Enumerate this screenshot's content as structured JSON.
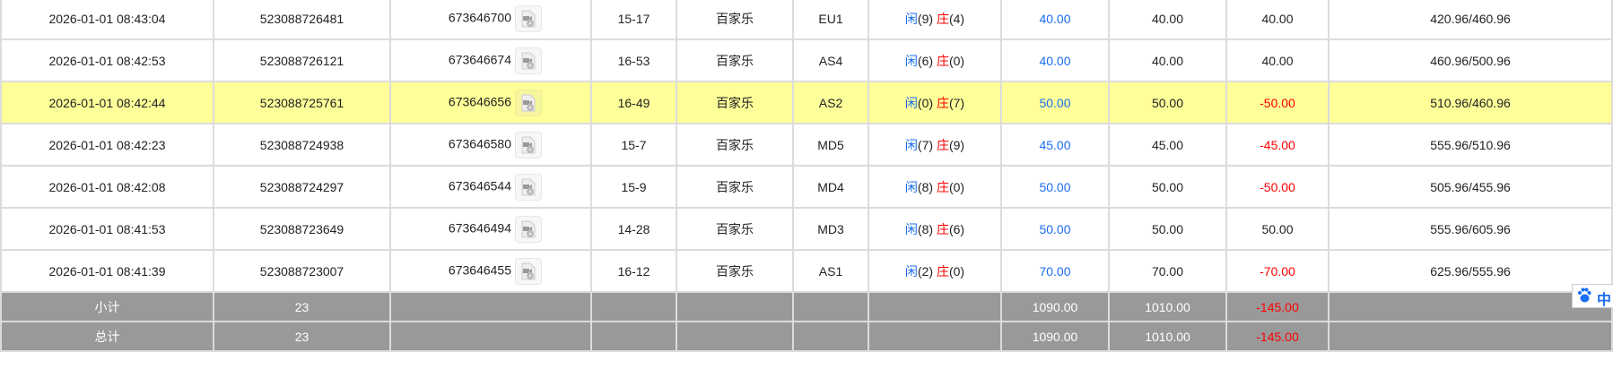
{
  "rows": [
    {
      "time": "2026-01-01 08:43:04",
      "bet_id": "523088726481",
      "round_id": "673646700",
      "shoe": "15-17",
      "game": "百家乐",
      "table": "EU1",
      "result_player_label": "闲",
      "result_player": "(9)",
      "result_banker_label": "庄",
      "result_banker": "(4)",
      "bet": "40.00",
      "valid": "40.00",
      "win": "40.00",
      "win_negative": false,
      "balance": "420.96/460.96",
      "highlight": false
    },
    {
      "time": "2026-01-01 08:42:53",
      "bet_id": "523088726121",
      "round_id": "673646674",
      "shoe": "16-53",
      "game": "百家乐",
      "table": "AS4",
      "result_player_label": "闲",
      "result_player": "(6)",
      "result_banker_label": "庄",
      "result_banker": "(0)",
      "bet": "40.00",
      "valid": "40.00",
      "win": "40.00",
      "win_negative": false,
      "balance": "460.96/500.96",
      "highlight": false
    },
    {
      "time": "2026-01-01 08:42:44",
      "bet_id": "523088725761",
      "round_id": "673646656",
      "shoe": "16-49",
      "game": "百家乐",
      "table": "AS2",
      "result_player_label": "闲",
      "result_player": "(0)",
      "result_banker_label": "庄",
      "result_banker": "(7)",
      "bet": "50.00",
      "valid": "50.00",
      "win": "-50.00",
      "win_negative": true,
      "balance": "510.96/460.96",
      "highlight": true
    },
    {
      "time": "2026-01-01 08:42:23",
      "bet_id": "523088724938",
      "round_id": "673646580",
      "shoe": "15-7",
      "game": "百家乐",
      "table": "MD5",
      "result_player_label": "闲",
      "result_player": "(7)",
      "result_banker_label": "庄",
      "result_banker": "(9)",
      "bet": "45.00",
      "valid": "45.00",
      "win": "-45.00",
      "win_negative": true,
      "balance": "555.96/510.96",
      "highlight": false
    },
    {
      "time": "2026-01-01 08:42:08",
      "bet_id": "523088724297",
      "round_id": "673646544",
      "shoe": "15-9",
      "game": "百家乐",
      "table": "MD4",
      "result_player_label": "闲",
      "result_player": "(8)",
      "result_banker_label": "庄",
      "result_banker": "(0)",
      "bet": "50.00",
      "valid": "50.00",
      "win": "-50.00",
      "win_negative": true,
      "balance": "505.96/455.96",
      "highlight": false
    },
    {
      "time": "2026-01-01 08:41:53",
      "bet_id": "523088723649",
      "round_id": "673646494",
      "shoe": "14-28",
      "game": "百家乐",
      "table": "MD3",
      "result_player_label": "闲",
      "result_player": "(8)",
      "result_banker_label": "庄",
      "result_banker": "(6)",
      "bet": "50.00",
      "valid": "50.00",
      "win": "50.00",
      "win_negative": false,
      "balance": "555.96/605.96",
      "highlight": false
    },
    {
      "time": "2026-01-01 08:41:39",
      "bet_id": "523088723007",
      "round_id": "673646455",
      "shoe": "16-12",
      "game": "百家乐",
      "table": "AS1",
      "result_player_label": "闲",
      "result_player": "(2)",
      "result_banker_label": "庄",
      "result_banker": "(0)",
      "bet": "70.00",
      "valid": "70.00",
      "win": "-70.00",
      "win_negative": true,
      "balance": "625.96/555.96",
      "highlight": false
    }
  ],
  "subtotal": {
    "label": "小计",
    "count": "23",
    "bet": "1090.00",
    "valid": "1010.00",
    "win": "-145.00"
  },
  "total": {
    "label": "总计",
    "count": "23",
    "bet": "1090.00",
    "valid": "1010.00",
    "win": "-145.00"
  },
  "ime": {
    "icon": "baidu-paw-icon",
    "label": "中"
  },
  "colors": {
    "highlight": "#ffff99",
    "blue": "#1a6ef0",
    "red": "#ff0000",
    "summary_bg": "#999999"
  }
}
